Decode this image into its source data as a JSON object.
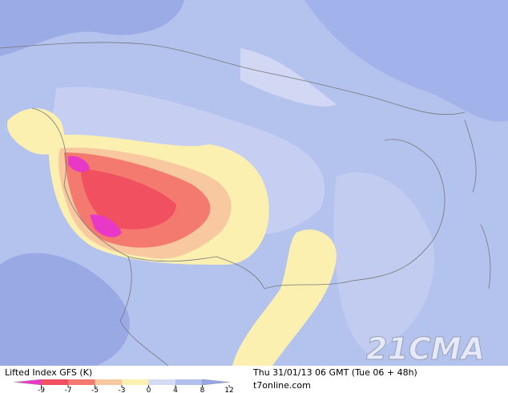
{
  "header": {
    "title": "Lifted Index GFS (K)",
    "valid_time": "Thu 31/01/13 06 GMT (Tue 06 + 48h)",
    "source": "t7online.com"
  },
  "watermark": "21CMA",
  "legend": {
    "ticks": [
      -9,
      -7,
      -5,
      -3,
      0,
      4,
      8,
      12
    ],
    "colors": [
      "#e838c8",
      "#f05060",
      "#f47a70",
      "#f8c8a0",
      "#fcf0b0",
      "#d4dcf4",
      "#b0bfee",
      "#94a6e6"
    ]
  }
}
